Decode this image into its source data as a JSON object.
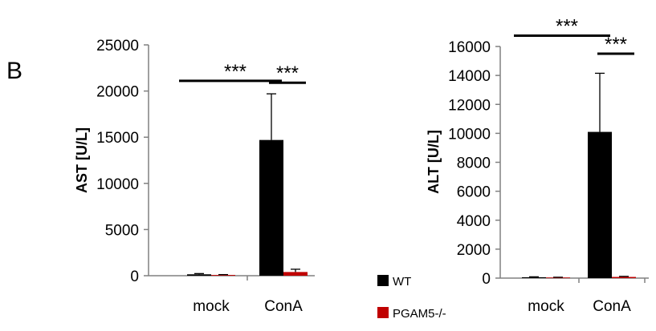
{
  "figure": {
    "panel_label": "B",
    "legend": [
      {
        "label": "WT",
        "color": "#000000"
      },
      {
        "label": "PGAM5-/-",
        "color": "#c00000"
      }
    ]
  },
  "chart_data": [
    {
      "type": "bar",
      "categories": [
        "mock",
        "ConA"
      ],
      "ylabel": "AST [U/L]",
      "ylim": [
        0,
        25000
      ],
      "yticks": [
        0,
        5000,
        10000,
        15000,
        20000,
        25000
      ],
      "grid": false,
      "series": [
        {
          "name": "WT",
          "color": "#000000",
          "values": [
            150,
            14700
          ],
          "errors": [
            80,
            5000
          ]
        },
        {
          "name": "PGAM5-/-",
          "color": "#c00000",
          "values": [
            80,
            400
          ],
          "errors": [
            40,
            300
          ]
        }
      ],
      "annotations": [
        {
          "text": "***",
          "between": [
            [
              "mock",
              "WT"
            ],
            [
              "ConA",
              "WT"
            ]
          ],
          "y": 21100
        },
        {
          "text": "***",
          "between": [
            [
              "ConA",
              "WT"
            ],
            [
              "ConA",
              "PGAM5-/-"
            ]
          ],
          "y": 20900
        }
      ]
    },
    {
      "type": "bar",
      "categories": [
        "mock",
        "ConA"
      ],
      "ylabel": "ALT [U/L]",
      "ylim": [
        0,
        16000
      ],
      "yticks": [
        0,
        2000,
        4000,
        6000,
        8000,
        10000,
        12000,
        14000,
        16000
      ],
      "grid": false,
      "series": [
        {
          "name": "WT",
          "color": "#000000",
          "values": [
            60,
            10100
          ],
          "errors": [
            30,
            4050
          ]
        },
        {
          "name": "PGAM5-/-",
          "color": "#c00000",
          "values": [
            40,
            80
          ],
          "errors": [
            20,
            40
          ]
        }
      ],
      "annotations": [
        {
          "text": "***",
          "between": [
            [
              "mock",
              "WT"
            ],
            [
              "ConA",
              "WT"
            ]
          ],
          "y": 16750
        },
        {
          "text": "***",
          "between": [
            [
              "ConA",
              "WT"
            ],
            [
              "ConA",
              "PGAM5-/-"
            ]
          ],
          "y": 15500
        }
      ]
    }
  ]
}
